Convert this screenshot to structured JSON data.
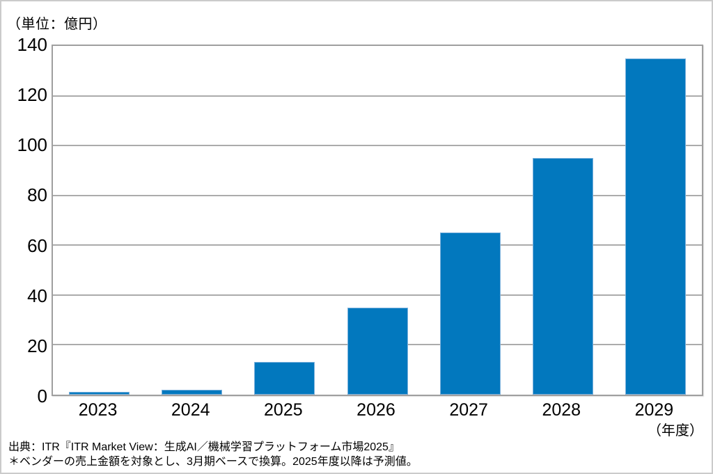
{
  "chart": {
    "unit_label": "（単位：億円）",
    "axis_note": "（年度）"
  },
  "footer": {
    "source": "出典：ITR『ITR Market View：生成AI／機械学習プラットフォーム市場2025』",
    "note": "＊ベンダーの売上金額を対象とし、3月期ベースで換算。2025年度以降は予測値。"
  },
  "chart_data": {
    "type": "bar",
    "title": "",
    "categories": [
      "2023",
      "2024",
      "2025",
      "2026",
      "2027",
      "2028",
      "2029"
    ],
    "values": [
      1,
      2,
      13,
      35,
      65,
      95,
      135
    ],
    "xlabel": "年度",
    "ylabel": "億円",
    "ylim": [
      0,
      140
    ],
    "yticks": [
      0,
      20,
      40,
      60,
      80,
      100,
      120,
      140
    ],
    "grid": true,
    "legend": false,
    "bar_color": "#0278be",
    "bar_edge_color": "#7eb2dd",
    "gridline_color": "#ababab",
    "plot_border_color": "#9f9f9f"
  }
}
